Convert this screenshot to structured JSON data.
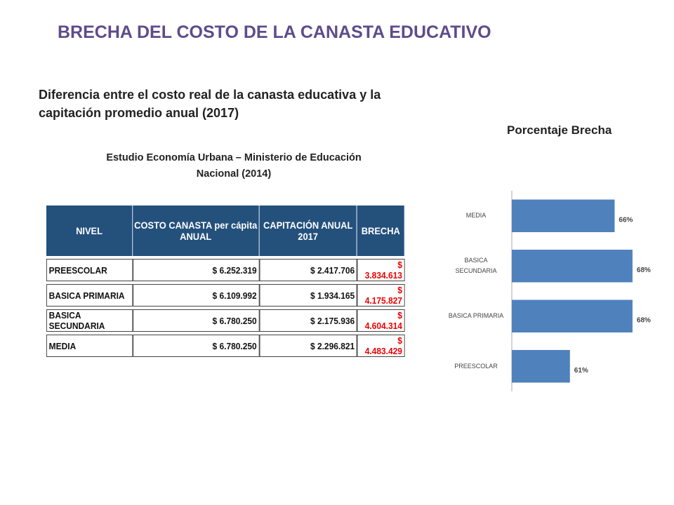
{
  "header": {
    "title": "BRECHA DEL COSTO DE LA CANASTA EDUCATIVO",
    "subtitle": "Diferencia entre el costo real de la canasta educativa y la capitación promedio anual (2017)",
    "source": "Estudio Economía Urbana – Ministerio de Educación Nacional (2014)"
  },
  "table": {
    "columns": [
      "NIVEL",
      "COSTO CANASTA per cápita ANUAL",
      "CAPITACIÓN ANUAL 2017",
      "BRECHA"
    ],
    "rows": [
      [
        "PREESCOLAR",
        "$ 6.252.319",
        "$ 2.417.706",
        "$ 3.834.613"
      ],
      [
        "BASICA PRIMARIA",
        "$ 6.109.992",
        "$ 1.934.165",
        "$ 4.175.827"
      ],
      [
        "BASICA SECUNDARIA",
        "$ 6.780.250",
        "$ 2.175.936",
        "$ 4.604.314"
      ],
      [
        "MEDIA",
        "$ 6.780.250",
        "$ 2.296.821",
        "$ 4.483.429"
      ]
    ]
  },
  "chart_data": {
    "type": "bar",
    "orientation": "horizontal",
    "title": "Porcentaje Brecha",
    "categories": [
      "MEDIA",
      "BASICA SECUNDARIA",
      "BASICA PRIMARIA",
      "PREESCOLAR"
    ],
    "values": [
      66,
      68,
      68,
      61
    ],
    "value_labels": [
      "66%",
      "68%",
      "68%",
      "61%"
    ],
    "color": "#4f81bd",
    "xlim": [
      54.5,
      69.5
    ]
  }
}
